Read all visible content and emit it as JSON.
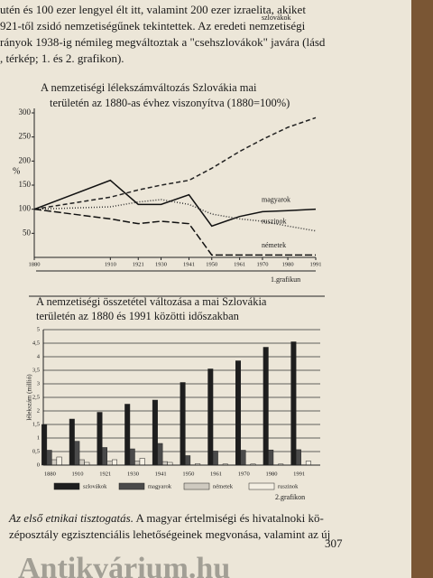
{
  "intro": [
    "utén és 100 ezer lengyel élt itt, valamint 200 ezer izraelita, akiket",
    "921-től zsidó nemzetiségűnek tekintettek. Az eredeti nemzetiségi",
    "rányok 1938-ig némileg megváltoztak a \"csehszlovákok\" javára (lásd",
    ", térkép; 1. és 2. grafikon)."
  ],
  "chart_data": [
    {
      "type": "line",
      "title": [
        "A nemzetiségi lélekszámváltozás Szlovákia mai",
        "területén az 1880-as évhez viszonyítva (1880=100%)"
      ],
      "y_label": "%",
      "caption": "1.grafikun",
      "x": [
        1880,
        1910,
        1921,
        1930,
        1941,
        1950,
        1961,
        1970,
        1980,
        1991
      ],
      "xlim": [
        1880,
        1991
      ],
      "xticks": [
        1880,
        1910,
        1921,
        1930,
        1941,
        1950,
        1961,
        1970,
        1980,
        1991
      ],
      "ylim": [
        0,
        300
      ],
      "yticks": [
        50,
        100,
        150,
        200,
        250,
        300
      ],
      "series": [
        {
          "name": "szlovákok",
          "color": "#222",
          "dash": "5 3",
          "values": [
            100,
            125,
            140,
            150,
            160,
            185,
            220,
            245,
            270,
            290
          ]
        },
        {
          "name": "magyarok",
          "color": "#111",
          "dash": "none",
          "values": [
            100,
            160,
            110,
            110,
            130,
            65,
            85,
            95,
            97,
            100
          ]
        },
        {
          "name": "ruszinok",
          "color": "#333",
          "dash": "1 2",
          "values": [
            100,
            105,
            115,
            120,
            110,
            90,
            80,
            75,
            65,
            55
          ]
        },
        {
          "name": "németek",
          "color": "#111",
          "dash": "8 3",
          "values": [
            100,
            80,
            70,
            75,
            70,
            5,
            5,
            5,
            5,
            5
          ]
        }
      ]
    },
    {
      "type": "bar",
      "title": [
        "A nemzetiségi összetétel változása a mai Szlovákia",
        "területén az 1880 és 1991 közötti időszakban"
      ],
      "y_label": "lélekszám (millió)",
      "caption": "2.grafikon",
      "categories": [
        "1880",
        "1910",
        "1921",
        "1930",
        "1941",
        "1950",
        "1961",
        "1970",
        "1980",
        "1991"
      ],
      "ylim": [
        0,
        5
      ],
      "grid": true,
      "yticks": [
        0,
        {
          "value": 0.5,
          "label": "0,5"
        },
        1,
        {
          "value": 1.5,
          "label": "1,5"
        },
        2,
        {
          "value": 2.5,
          "label": "2,5"
        },
        3,
        {
          "value": 3.5,
          "label": "3,5"
        },
        4,
        {
          "value": 4.5,
          "label": "4,5"
        },
        5
      ],
      "series": [
        {
          "name": "szlovákok",
          "color": "#1e1e1e",
          "values": [
            1.5,
            1.7,
            1.95,
            2.25,
            2.4,
            3.05,
            3.55,
            3.85,
            4.35,
            4.55
          ]
        },
        {
          "name": "magyarok",
          "color": "#4a4a4a",
          "values": [
            0.55,
            0.88,
            0.65,
            0.6,
            0.8,
            0.35,
            0.52,
            0.55,
            0.56,
            0.57
          ]
        },
        {
          "name": "németek",
          "color": "#cfcac0",
          "values": [
            0.2,
            0.2,
            0.14,
            0.15,
            0.13,
            0.01,
            0.01,
            0.01,
            0.01,
            0.01
          ]
        },
        {
          "name": "ruszinok",
          "color": "#f4efe3",
          "values": [
            0.3,
            0.1,
            0.2,
            0.25,
            0.1,
            0.05,
            0.04,
            0.04,
            0.04,
            0.15
          ]
        }
      ]
    }
  ],
  "outro": {
    "italic": "Az első etnikai tisztogatás.",
    "lines": [
      " A magyar értelmiségi és hivatalnoki kö-",
      "zéposztály egzisztenciális lehetőségeinek megvonása, valamint az új"
    ]
  },
  "page_number": "307",
  "watermark": "Antikvárium.hu"
}
